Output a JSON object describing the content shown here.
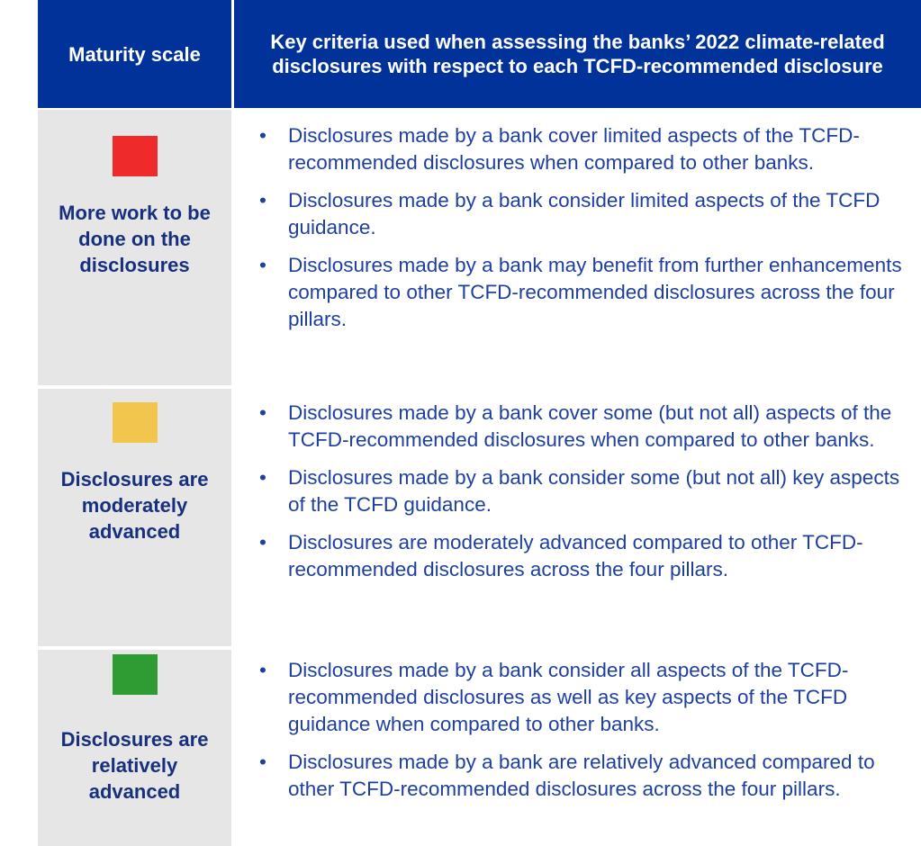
{
  "table": {
    "header": [
      "Maturity scale",
      "Key criteria used when assessing the banks’ 2022 climate-related disclosures with respect to each TCFD-recommended disclosure"
    ],
    "rows": [
      {
        "label": "More work to be done on the disclosures",
        "color": "#ee2a2a",
        "criteria": [
          "Disclosures made by a bank cover limited aspects of the TCFD-recommended disclosures when compared to other banks.",
          "Disclosures made by a bank consider limited aspects of the TCFD guidance.",
          "Disclosures made by a bank may benefit from further enhancements compared to other TCFD-recommended disclosures across the four pillars."
        ]
      },
      {
        "label": "Disclosures are moderately advanced",
        "color": "#f2c54e",
        "criteria": [
          "Disclosures made by a bank cover some (but not all) aspects of the TCFD-recommended disclosures when compared to other banks.",
          "Disclosures made by a bank consider some (but not all) key aspects of the TCFD guidance.",
          "Disclosures are moderately advanced compared to other TCFD-recommended disclosures across the four pillars."
        ]
      },
      {
        "label": "Disclosures are relatively advanced",
        "color": "#2e9c33",
        "criteria": [
          "Disclosures made by a bank consider all aspects of the TCFD-recommended disclosures as well as key aspects of the TCFD guidance when compared to other banks.",
          "Disclosures made by a bank are relatively advanced compared to other TCFD-recommended disclosures across the four pillars."
        ]
      }
    ]
  }
}
